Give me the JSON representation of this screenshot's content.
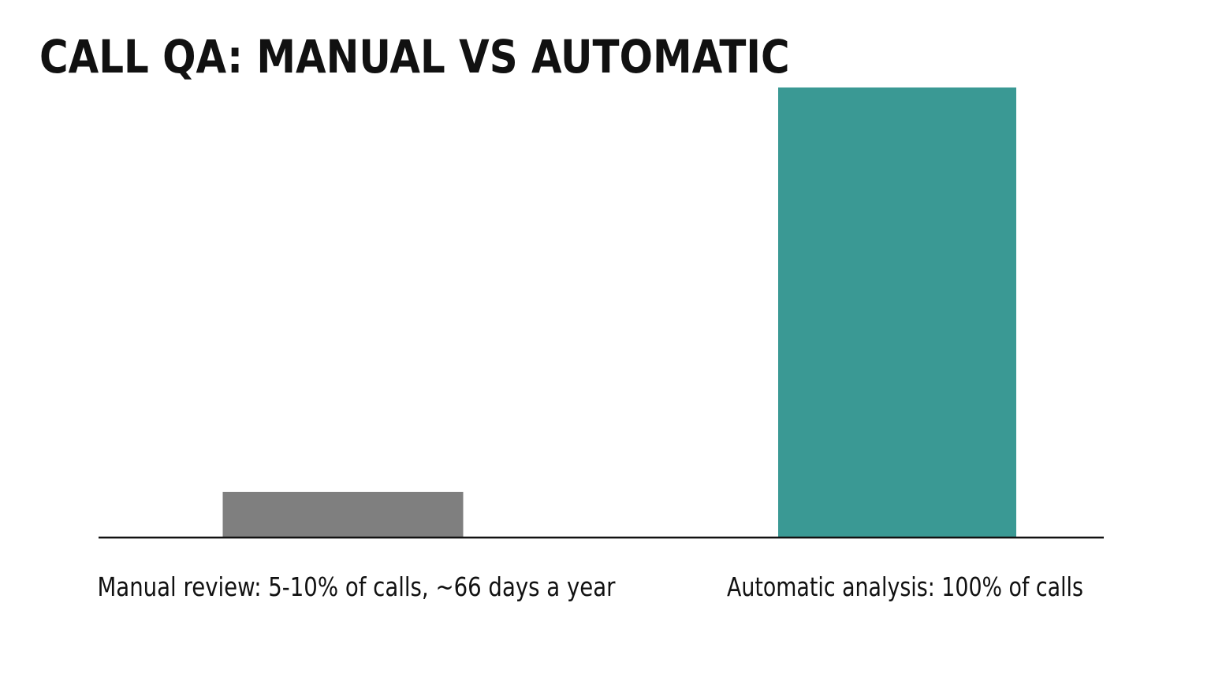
{
  "chart_data": {
    "type": "bar",
    "title": "CALL QA: MANUAL VS AUTOMATIC",
    "categories": [
      "Manual review: 5-10% of calls, ~66 days a year",
      "Automatic analysis: 100% of calls"
    ],
    "values": [
      10,
      100
    ],
    "ylim": [
      0,
      100
    ],
    "colors": [
      "#7f7f7f",
      "#3a9994"
    ],
    "axis_color": "#111111",
    "grid": false
  }
}
